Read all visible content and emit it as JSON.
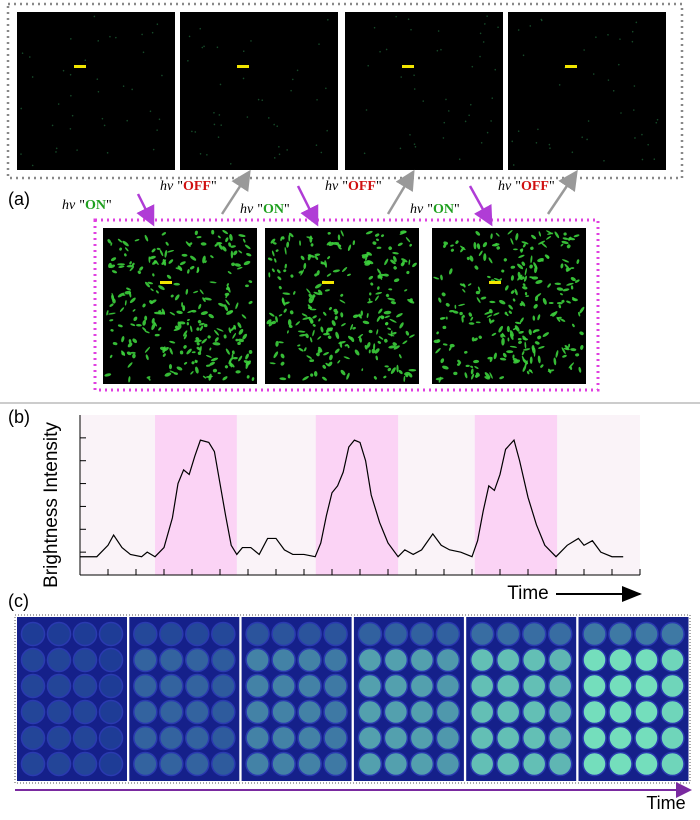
{
  "panel_labels": [
    "(a)",
    "(b)",
    "(c)"
  ],
  "switch_labels": [
    {
      "symbol": "hν",
      "quote": "\"",
      "state": "ON"
    },
    {
      "symbol": "hν",
      "quote": "\"",
      "state": "OFF"
    },
    {
      "symbol": "hν",
      "quote": "\"",
      "state": "ON"
    },
    {
      "symbol": "hν",
      "quote": "\"",
      "state": "OFF"
    },
    {
      "symbol": "hν",
      "quote": "\"",
      "state": "ON"
    },
    {
      "symbol": "hν",
      "quote": "\"",
      "state": "OFF"
    }
  ],
  "plate_axis_label": "Time",
  "chart_data": {
    "type": "line",
    "ylabel": "Brightness Intensity",
    "xlabel": "Time",
    "xlim": [
      0,
      100
    ],
    "ylim": [
      0,
      7
    ],
    "xticks": [
      0,
      5,
      10,
      15,
      20,
      25,
      30,
      35,
      40,
      45,
      50,
      55,
      60,
      65,
      70,
      75,
      80,
      85,
      90,
      95,
      100
    ],
    "yticks": [
      1,
      2,
      3,
      4,
      5,
      6
    ],
    "highlights": [
      [
        13.4,
        28
      ],
      [
        42.1,
        56.8
      ],
      [
        70.5,
        85.2
      ]
    ],
    "highlight_color": "#fbd3f5",
    "background_color": "#faf3f8",
    "series": [
      {
        "color": "#000000",
        "x": [
          0,
          3,
          5,
          6,
          7.5,
          9,
          11,
          12,
          13.4,
          15,
          16.5,
          17.5,
          18.5,
          19.5,
          20.5,
          21.5,
          23,
          24,
          25,
          26,
          27,
          28,
          29,
          30.5,
          32,
          33.5,
          35,
          36.5,
          38,
          40,
          42,
          43,
          44,
          45,
          46,
          47,
          48,
          49,
          50,
          51,
          52,
          53.5,
          55,
          56.8,
          58,
          59.5,
          61,
          63,
          64.5,
          66,
          68,
          70,
          71,
          72,
          73,
          74,
          75,
          76,
          77.5,
          78.5,
          80,
          81.5,
          83,
          85,
          87,
          89,
          90,
          91.5,
          93,
          95,
          97
        ],
        "values": [
          0.8,
          0.8,
          1.3,
          1.75,
          1.2,
          0.9,
          0.8,
          1.0,
          0.8,
          1.2,
          2.5,
          4.0,
          4.6,
          4.4,
          5.2,
          5.9,
          5.8,
          5.4,
          4.0,
          2.6,
          1.3,
          0.9,
          1.2,
          1.2,
          0.9,
          1.6,
          1.6,
          1.1,
          0.9,
          0.9,
          0.8,
          1.4,
          2.6,
          3.6,
          3.9,
          4.5,
          5.6,
          5.9,
          5.8,
          5.0,
          3.5,
          2.3,
          1.4,
          0.8,
          1.1,
          0.9,
          1.1,
          1.8,
          1.3,
          1.1,
          1.0,
          0.8,
          1.5,
          2.8,
          3.9,
          3.7,
          4.4,
          5.5,
          5.9,
          5.0,
          3.4,
          2.2,
          1.3,
          0.8,
          1.3,
          1.6,
          1.3,
          1.5,
          1.0,
          0.8,
          0.8
        ]
      }
    ]
  }
}
